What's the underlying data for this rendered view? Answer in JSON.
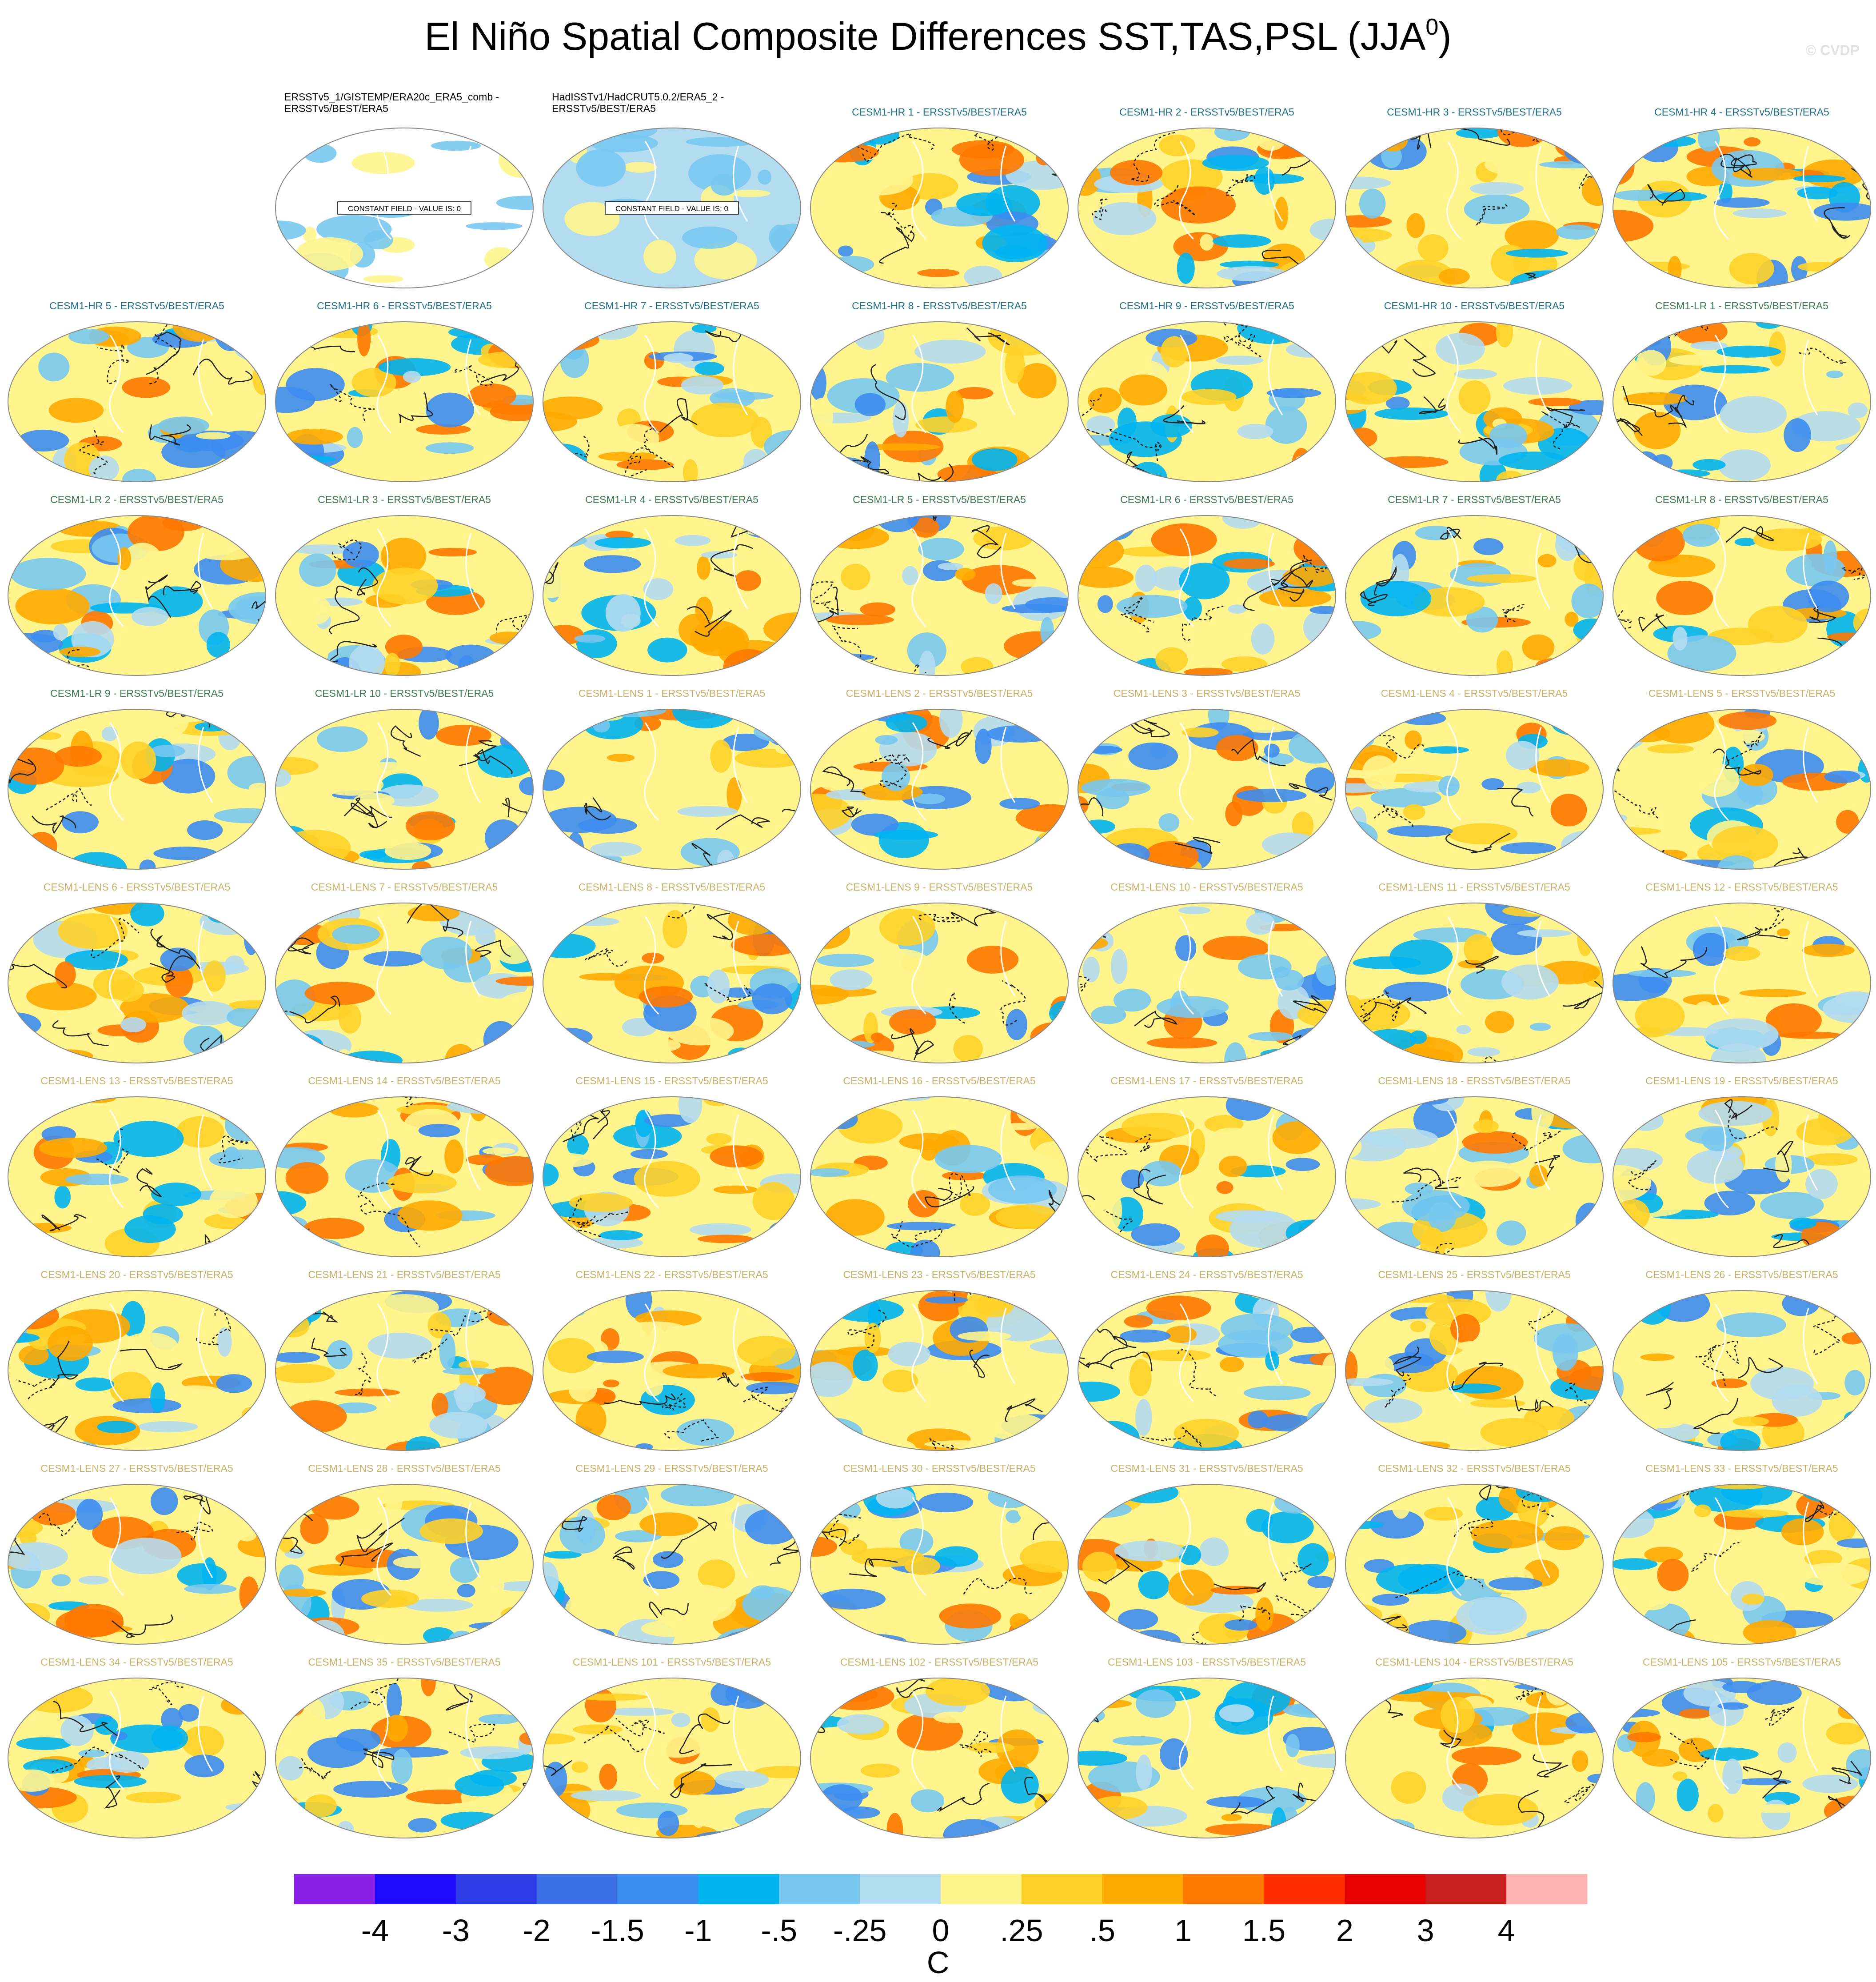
{
  "title": {
    "text": "El Niño Spatial Composite Differences SST,TAS,PSL (JJA",
    "superscript": "0",
    "close": ")"
  },
  "watermark": "© CVDP",
  "panels": [
    {
      "title": [
        "ERSSTv5_1/GISTEMP/ERA20c_ERA5_comb -",
        "ERSSTv5/BEST/ERA5"
      ],
      "color": "#000000",
      "note": "CONSTANT FIELD - VALUE IS: 0"
    },
    {
      "title": [
        "HadISSTv1/HadCRUT5.0.2/ERA5_2 -",
        "ERSSTv5/BEST/ERA5"
      ],
      "color": "#000000",
      "note": "CONSTANT FIELD - VALUE IS: 0"
    },
    {
      "title": [
        "CESM1-HR 1 - ERSSTv5/BEST/ERA5"
      ],
      "color": "#1f6f8b"
    },
    {
      "title": [
        "CESM1-HR 2 - ERSSTv5/BEST/ERA5"
      ],
      "color": "#1f6f8b"
    },
    {
      "title": [
        "CESM1-HR 3 - ERSSTv5/BEST/ERA5"
      ],
      "color": "#1f6f8b"
    },
    {
      "title": [
        "CESM1-HR 4 - ERSSTv5/BEST/ERA5"
      ],
      "color": "#1f6f8b"
    },
    {
      "title": [
        "CESM1-HR 5 - ERSSTv5/BEST/ERA5"
      ],
      "color": "#1f6f8b"
    },
    {
      "title": [
        "CESM1-HR 6 - ERSSTv5/BEST/ERA5"
      ],
      "color": "#1f6f8b"
    },
    {
      "title": [
        "CESM1-HR 7 - ERSSTv5/BEST/ERA5"
      ],
      "color": "#1f6f8b"
    },
    {
      "title": [
        "CESM1-HR 8 - ERSSTv5/BEST/ERA5"
      ],
      "color": "#1f6f8b"
    },
    {
      "title": [
        "CESM1-HR 9 - ERSSTv5/BEST/ERA5"
      ],
      "color": "#1f6f8b"
    },
    {
      "title": [
        "CESM1-HR 10 - ERSSTv5/BEST/ERA5"
      ],
      "color": "#1f6f8b"
    },
    {
      "title": [
        "CESM1-LR 1 - ERSSTv5/BEST/ERA5"
      ],
      "color": "#3d7a52"
    },
    {
      "title": [
        "CESM1-LR 2 - ERSSTv5/BEST/ERA5"
      ],
      "color": "#3d7a52"
    },
    {
      "title": [
        "CESM1-LR 3 - ERSSTv5/BEST/ERA5"
      ],
      "color": "#3d7a52"
    },
    {
      "title": [
        "CESM1-LR 4 - ERSSTv5/BEST/ERA5"
      ],
      "color": "#3d7a52"
    },
    {
      "title": [
        "CESM1-LR 5 - ERSSTv5/BEST/ERA5"
      ],
      "color": "#3d7a52"
    },
    {
      "title": [
        "CESM1-LR 6 - ERSSTv5/BEST/ERA5"
      ],
      "color": "#3d7a52"
    },
    {
      "title": [
        "CESM1-LR 7 - ERSSTv5/BEST/ERA5"
      ],
      "color": "#3d7a52"
    },
    {
      "title": [
        "CESM1-LR 8 - ERSSTv5/BEST/ERA5"
      ],
      "color": "#3d7a52"
    },
    {
      "title": [
        "CESM1-LR 9 - ERSSTv5/BEST/ERA5"
      ],
      "color": "#3d7a52"
    },
    {
      "title": [
        "CESM1-LR 10 - ERSSTv5/BEST/ERA5"
      ],
      "color": "#3d7a52"
    },
    {
      "title": [
        "CESM1-LENS 1 - ERSSTv5/BEST/ERA5"
      ],
      "color": "#c9b066"
    },
    {
      "title": [
        "CESM1-LENS 2 - ERSSTv5/BEST/ERA5"
      ],
      "color": "#c9b066"
    },
    {
      "title": [
        "CESM1-LENS 3 - ERSSTv5/BEST/ERA5"
      ],
      "color": "#c9b066"
    },
    {
      "title": [
        "CESM1-LENS 4 - ERSSTv5/BEST/ERA5"
      ],
      "color": "#c9b066"
    },
    {
      "title": [
        "CESM1-LENS 5 - ERSSTv5/BEST/ERA5"
      ],
      "color": "#c9b066"
    },
    {
      "title": [
        "CESM1-LENS 6 - ERSSTv5/BEST/ERA5"
      ],
      "color": "#c9b066"
    },
    {
      "title": [
        "CESM1-LENS 7 - ERSSTv5/BEST/ERA5"
      ],
      "color": "#c9b066"
    },
    {
      "title": [
        "CESM1-LENS 8 - ERSSTv5/BEST/ERA5"
      ],
      "color": "#c9b066"
    },
    {
      "title": [
        "CESM1-LENS 9 - ERSSTv5/BEST/ERA5"
      ],
      "color": "#c9b066"
    },
    {
      "title": [
        "CESM1-LENS 10 - ERSSTv5/BEST/ERA5"
      ],
      "color": "#c9b066"
    },
    {
      "title": [
        "CESM1-LENS 11 - ERSSTv5/BEST/ERA5"
      ],
      "color": "#c9b066"
    },
    {
      "title": [
        "CESM1-LENS 12 - ERSSTv5/BEST/ERA5"
      ],
      "color": "#c9b066"
    },
    {
      "title": [
        "CESM1-LENS 13 - ERSSTv5/BEST/ERA5"
      ],
      "color": "#c9b066"
    },
    {
      "title": [
        "CESM1-LENS 14 - ERSSTv5/BEST/ERA5"
      ],
      "color": "#c9b066"
    },
    {
      "title": [
        "CESM1-LENS 15 - ERSSTv5/BEST/ERA5"
      ],
      "color": "#c9b066"
    },
    {
      "title": [
        "CESM1-LENS 16 - ERSSTv5/BEST/ERA5"
      ],
      "color": "#c9b066"
    },
    {
      "title": [
        "CESM1-LENS 17 - ERSSTv5/BEST/ERA5"
      ],
      "color": "#c9b066"
    },
    {
      "title": [
        "CESM1-LENS 18 - ERSSTv5/BEST/ERA5"
      ],
      "color": "#c9b066"
    },
    {
      "title": [
        "CESM1-LENS 19 - ERSSTv5/BEST/ERA5"
      ],
      "color": "#c9b066"
    },
    {
      "title": [
        "CESM1-LENS 20 - ERSSTv5/BEST/ERA5"
      ],
      "color": "#c9b066"
    },
    {
      "title": [
        "CESM1-LENS 21 - ERSSTv5/BEST/ERA5"
      ],
      "color": "#c9b066"
    },
    {
      "title": [
        "CESM1-LENS 22 - ERSSTv5/BEST/ERA5"
      ],
      "color": "#c9b066"
    },
    {
      "title": [
        "CESM1-LENS 23 - ERSSTv5/BEST/ERA5"
      ],
      "color": "#c9b066"
    },
    {
      "title": [
        "CESM1-LENS 24 - ERSSTv5/BEST/ERA5"
      ],
      "color": "#c9b066"
    },
    {
      "title": [
        "CESM1-LENS 25 - ERSSTv5/BEST/ERA5"
      ],
      "color": "#c9b066"
    },
    {
      "title": [
        "CESM1-LENS 26 - ERSSTv5/BEST/ERA5"
      ],
      "color": "#c9b066"
    },
    {
      "title": [
        "CESM1-LENS 27 - ERSSTv5/BEST/ERA5"
      ],
      "color": "#c9b066"
    },
    {
      "title": [
        "CESM1-LENS 28 - ERSSTv5/BEST/ERA5"
      ],
      "color": "#c9b066"
    },
    {
      "title": [
        "CESM1-LENS 29 - ERSSTv5/BEST/ERA5"
      ],
      "color": "#c9b066"
    },
    {
      "title": [
        "CESM1-LENS 30 - ERSSTv5/BEST/ERA5"
      ],
      "color": "#c9b066"
    },
    {
      "title": [
        "CESM1-LENS 31 - ERSSTv5/BEST/ERA5"
      ],
      "color": "#c9b066"
    },
    {
      "title": [
        "CESM1-LENS 32 - ERSSTv5/BEST/ERA5"
      ],
      "color": "#c9b066"
    },
    {
      "title": [
        "CESM1-LENS 33 - ERSSTv5/BEST/ERA5"
      ],
      "color": "#c9b066"
    },
    {
      "title": [
        "CESM1-LENS 34 - ERSSTv5/BEST/ERA5"
      ],
      "color": "#c9b066"
    },
    {
      "title": [
        "CESM1-LENS 35 - ERSSTv5/BEST/ERA5"
      ],
      "color": "#c9b066"
    },
    {
      "title": [
        "CESM1-LENS 101 - ERSSTv5/BEST/ERA5"
      ],
      "color": "#c9b066"
    },
    {
      "title": [
        "CESM1-LENS 102 - ERSSTv5/BEST/ERA5"
      ],
      "color": "#c9b066"
    },
    {
      "title": [
        "CESM1-LENS 103 - ERSSTv5/BEST/ERA5"
      ],
      "color": "#c9b066"
    },
    {
      "title": [
        "CESM1-LENS 104 - ERSSTv5/BEST/ERA5"
      ],
      "color": "#c9b066"
    },
    {
      "title": [
        "CESM1-LENS 105 - ERSSTv5/BEST/ERA5"
      ],
      "color": "#c9b066"
    }
  ],
  "colorbar": {
    "colors": [
      "#8a1fe8",
      "#1e0aff",
      "#2d3ce6",
      "#3c6ee6",
      "#3c8cf0",
      "#00b4f0",
      "#78c8f0",
      "#b4dcf0",
      "#fff58c",
      "#ffd228",
      "#ffaa00",
      "#ff7800",
      "#ff2d00",
      "#e60000",
      "#c81e1e",
      "#ffb4b4"
    ],
    "labels": [
      "-4",
      "-3",
      "-2",
      "-1.5",
      "-1",
      "-.5",
      "-.25",
      "0",
      ".25",
      ".5",
      "1",
      "1.5",
      "2",
      "3",
      "4"
    ],
    "unit": "C"
  }
}
